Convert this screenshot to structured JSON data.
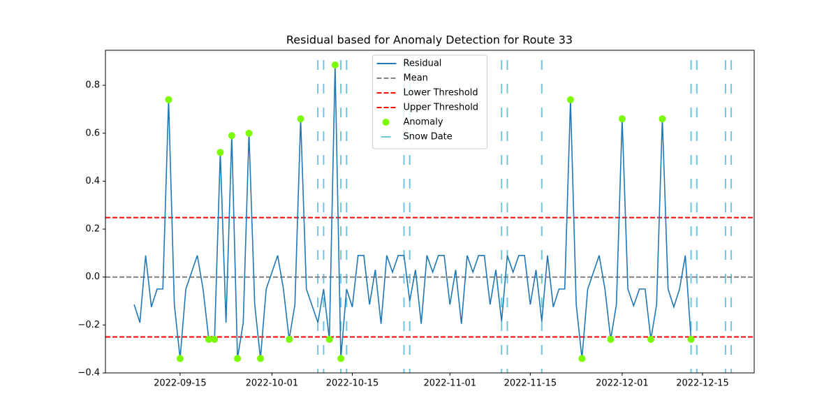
{
  "chart_data": {
    "type": "line",
    "title": "Residual based for Anomaly Detection for Route 33",
    "x": [
      "2022-09-07",
      "2022-09-08",
      "2022-09-09",
      "2022-09-10",
      "2022-09-11",
      "2022-09-12",
      "2022-09-13",
      "2022-09-14",
      "2022-09-15",
      "2022-09-16",
      "2022-09-17",
      "2022-09-18",
      "2022-09-19",
      "2022-09-20",
      "2022-09-21",
      "2022-09-22",
      "2022-09-23",
      "2022-09-24",
      "2022-09-25",
      "2022-09-26",
      "2022-09-27",
      "2022-09-28",
      "2022-09-29",
      "2022-09-30",
      "2022-10-01",
      "2022-10-02",
      "2022-10-03",
      "2022-10-04",
      "2022-10-05",
      "2022-10-06",
      "2022-10-07",
      "2022-10-08",
      "2022-10-09",
      "2022-10-10",
      "2022-10-11",
      "2022-10-12",
      "2022-10-13",
      "2022-10-14",
      "2022-10-15",
      "2022-10-16",
      "2022-10-17",
      "2022-10-18",
      "2022-10-19",
      "2022-10-20",
      "2022-10-21",
      "2022-10-22",
      "2022-10-23",
      "2022-10-24",
      "2022-10-25",
      "2022-10-26",
      "2022-10-27",
      "2022-10-28",
      "2022-10-29",
      "2022-10-30",
      "2022-10-31",
      "2022-11-01",
      "2022-11-02",
      "2022-11-03",
      "2022-11-04",
      "2022-11-05",
      "2022-11-06",
      "2022-11-07",
      "2022-11-08",
      "2022-11-09",
      "2022-11-10",
      "2022-11-11",
      "2022-11-12",
      "2022-11-13",
      "2022-11-14",
      "2022-11-15",
      "2022-11-16",
      "2022-11-17",
      "2022-11-18",
      "2022-11-19",
      "2022-11-20",
      "2022-11-21",
      "2022-11-22",
      "2022-11-23",
      "2022-11-24",
      "2022-11-25",
      "2022-11-26",
      "2022-11-27",
      "2022-11-28",
      "2022-11-29",
      "2022-11-30",
      "2022-12-01",
      "2022-12-02",
      "2022-12-03",
      "2022-12-04",
      "2022-12-05",
      "2022-12-06",
      "2022-12-07",
      "2022-12-08",
      "2022-12-09",
      "2022-12-10",
      "2022-12-11",
      "2022-12-12",
      "2022-12-13"
    ],
    "series": [
      {
        "name": "Residual",
        "color": "#1f77b4",
        "values": [
          -0.115,
          -0.19,
          0.09,
          -0.125,
          -0.05,
          -0.05,
          0.74,
          -0.115,
          -0.34,
          -0.05,
          0.02,
          0.09,
          -0.05,
          -0.26,
          -0.26,
          0.52,
          -0.19,
          0.59,
          -0.34,
          -0.19,
          0.6,
          -0.115,
          -0.34,
          -0.05,
          0.02,
          0.09,
          -0.05,
          -0.26,
          -0.115,
          0.66,
          -0.05,
          -0.12,
          -0.19,
          -0.05,
          -0.26,
          0.885,
          -0.34,
          -0.05,
          -0.125,
          0.09,
          0.09,
          -0.115,
          0.03,
          -0.195,
          0.09,
          0.02,
          0.09,
          0.09,
          -0.1,
          0.03,
          -0.195,
          0.09,
          0.02,
          0.09,
          0.09,
          -0.115,
          0.03,
          -0.195,
          0.09,
          0.02,
          0.09,
          0.09,
          -0.115,
          0.03,
          -0.185,
          0.09,
          0.02,
          0.09,
          0.09,
          -0.115,
          0.03,
          -0.185,
          0.09,
          -0.125,
          -0.05,
          -0.05,
          0.74,
          -0.115,
          -0.34,
          -0.05,
          0.02,
          0.09,
          -0.05,
          -0.26,
          -0.115,
          0.66,
          -0.05,
          -0.12,
          -0.05,
          -0.05,
          -0.26,
          -0.115,
          0.66,
          -0.05,
          -0.125,
          -0.05,
          0.09,
          -0.26
        ]
      }
    ],
    "hlines": [
      {
        "name": "Mean",
        "color": "#808080",
        "value": 0
      },
      {
        "name": "Lower Threshold",
        "color": "#ff0000",
        "value": -0.25
      },
      {
        "name": "Upper Threshold",
        "color": "#ff0000",
        "value": 0.248
      }
    ],
    "anomalies": {
      "name": "Anomaly",
      "color": "#7cfc00",
      "x": [
        "2022-09-13",
        "2022-09-15",
        "2022-09-20",
        "2022-09-21",
        "2022-09-22",
        "2022-09-24",
        "2022-09-25",
        "2022-09-27",
        "2022-09-29",
        "2022-10-04",
        "2022-10-06",
        "2022-10-11",
        "2022-10-12",
        "2022-10-13",
        "2022-11-22",
        "2022-11-24",
        "2022-11-29",
        "2022-12-01",
        "2022-12-06",
        "2022-12-08",
        "2022-12-13"
      ],
      "values": [
        0.74,
        -0.34,
        -0.26,
        -0.26,
        0.52,
        0.59,
        -0.34,
        0.6,
        -0.34,
        -0.26,
        0.66,
        -0.26,
        0.885,
        -0.34,
        0.74,
        -0.34,
        -0.26,
        0.66,
        -0.26,
        0.66,
        -0.26
      ]
    },
    "snow_dates": {
      "name": "Snow Date",
      "color": "#6cc7df",
      "x": [
        "2022-10-09",
        "2022-10-10",
        "2022-10-13",
        "2022-10-14",
        "2022-10-24",
        "2022-10-25",
        "2022-11-10",
        "2022-11-11",
        "2022-11-17",
        "2022-12-13",
        "2022-12-14",
        "2022-12-19",
        "2022-12-20"
      ]
    },
    "xlim": [
      "2022-09-02",
      "2022-12-24"
    ],
    "xticks": [
      "2022-09-15",
      "2022-10-01",
      "2022-10-15",
      "2022-11-01",
      "2022-11-15",
      "2022-12-01",
      "2022-12-15"
    ],
    "ylim": [
      -0.4,
      0.946
    ],
    "yticks": [
      {
        "value": -0.4,
        "label": "−0.4"
      },
      {
        "value": -0.2,
        "label": "−0.2"
      },
      {
        "value": 0,
        "label": "0.0"
      },
      0.2,
      0.4,
      0.6,
      0.8
    ],
    "legend": "upper center"
  }
}
